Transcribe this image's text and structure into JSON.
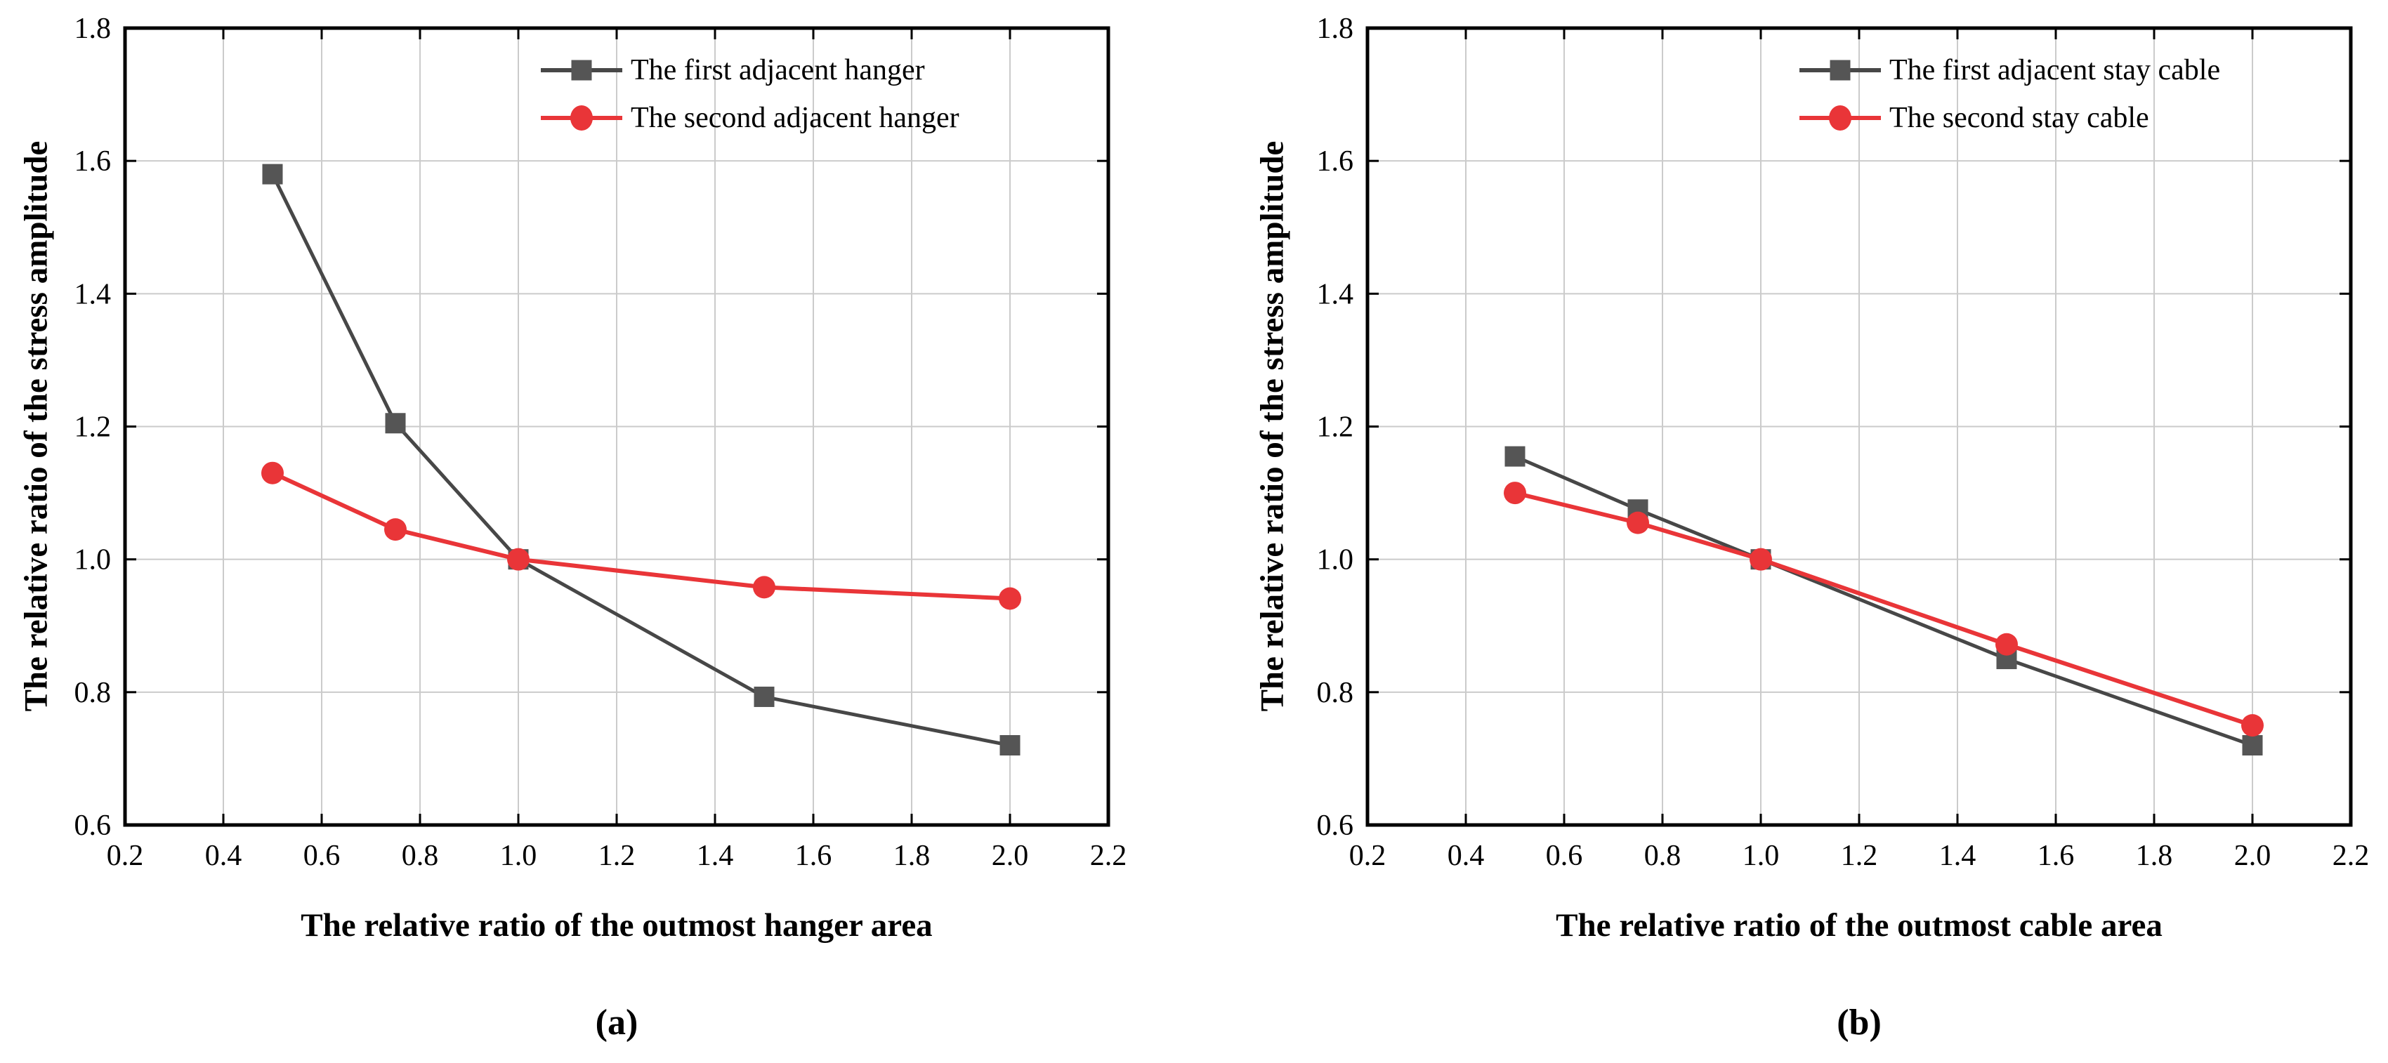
{
  "figure_alt": "Two line charts comparing relative stress amplitude ratios",
  "panels": [
    {
      "panel_label": "(a)",
      "x_title": "The relative ratio of the outmost hanger area",
      "y_title": "The relative ratio of the stress amplitude"
    },
    {
      "panel_label": "(b)",
      "x_title": "The relative ratio of the outmost cable area",
      "y_title": "The relative ratio of the stress amplitude"
    }
  ],
  "chart_data": [
    {
      "type": "line",
      "panel": "a",
      "xlabel": "The relative ratio of the outmost hanger area",
      "ylabel": "The relative ratio of the stress amplitude",
      "xlim": [
        0.2,
        2.2
      ],
      "ylim": [
        0.6,
        1.8
      ],
      "xtick_labels": [
        "0.2",
        "0.4",
        "0.6",
        "0.8",
        "1.0",
        "1.2",
        "1.4",
        "1.6",
        "1.8",
        "2.0",
        "2.2"
      ],
      "ytick_labels": [
        "0.6",
        "0.8",
        "1.0",
        "1.2",
        "1.4",
        "1.6",
        "1.8"
      ],
      "xtick_values": [
        0.2,
        0.4,
        0.6,
        0.8,
        1.0,
        1.2,
        1.4,
        1.6,
        1.8,
        2.0,
        2.2
      ],
      "ytick_values": [
        0.6,
        0.8,
        1.0,
        1.2,
        1.4,
        1.6,
        1.8
      ],
      "grid": true,
      "legend_position": "inside-top-right",
      "x": [
        0.5,
        0.75,
        1.0,
        1.5,
        2.0
      ],
      "series": [
        {
          "name": "The first adjacent hanger",
          "marker": "square",
          "color": "#555555",
          "line_color": "#474747",
          "values": [
            1.58,
            1.205,
            1.0,
            0.793,
            0.72
          ]
        },
        {
          "name": "The second adjacent hanger",
          "marker": "circle",
          "color": "#e93538",
          "line_color": "#e93538",
          "values": [
            1.13,
            1.045,
            1.0,
            0.958,
            0.941
          ]
        }
      ]
    },
    {
      "type": "line",
      "panel": "b",
      "xlabel": "The relative ratio of the outmost cable area",
      "ylabel": "The relative ratio of the stress amplitude",
      "xlim": [
        0.2,
        2.2
      ],
      "ylim": [
        0.6,
        1.8
      ],
      "xtick_labels": [
        "0.2",
        "0.4",
        "0.6",
        "0.8",
        "1.0",
        "1.2",
        "1.4",
        "1.6",
        "1.8",
        "2.0",
        "2.2"
      ],
      "ytick_labels": [
        "0.6",
        "0.8",
        "1.0",
        "1.2",
        "1.4",
        "1.6",
        "1.8"
      ],
      "xtick_values": [
        0.2,
        0.4,
        0.6,
        0.8,
        1.0,
        1.2,
        1.4,
        1.6,
        1.8,
        2.0,
        2.2
      ],
      "ytick_values": [
        0.6,
        0.8,
        1.0,
        1.2,
        1.4,
        1.6,
        1.8
      ],
      "grid": true,
      "legend_position": "inside-top-right",
      "x": [
        0.5,
        0.75,
        1.0,
        1.5,
        2.0
      ],
      "series": [
        {
          "name": "The first adjacent stay cable",
          "marker": "square",
          "color": "#555555",
          "line_color": "#474747",
          "values": [
            1.155,
            1.075,
            1.0,
            0.85,
            0.72
          ]
        },
        {
          "name": "The second stay cable",
          "marker": "circle",
          "color": "#e93538",
          "line_color": "#e93538",
          "values": [
            1.1,
            1.055,
            1.0,
            0.872,
            0.75
          ]
        }
      ]
    }
  ],
  "style": {
    "grid_color": "#cbcbcb",
    "axis_color": "#000000",
    "background": "#ffffff"
  }
}
